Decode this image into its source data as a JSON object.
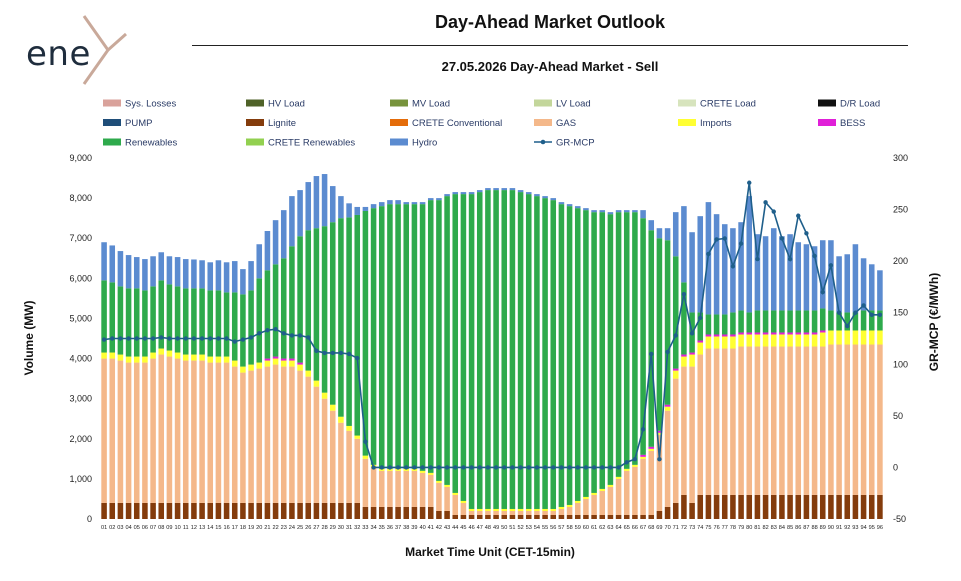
{
  "header": {
    "logo_text": "ene",
    "title": "Day-Ahead Market Outlook",
    "subtitle": "27.05.2026  Day-Ahead Market - Sell"
  },
  "chart_data": {
    "type": "bar",
    "stacked": true,
    "title": "27.05.2026  Day-Ahead Market - Sell",
    "xlabel": "Market Time Unit (CET-15min)",
    "ylabel": "Volume (MW)",
    "y2label": "GR-MCP (€/MWh)",
    "ylim": [
      0,
      9000
    ],
    "y2lim": [
      -50,
      300
    ],
    "yticks": [
      0,
      1000,
      2000,
      3000,
      4000,
      5000,
      6000,
      7000,
      8000,
      9000
    ],
    "y2ticks": [
      -50,
      0,
      50,
      100,
      150,
      200,
      250,
      300
    ],
    "categories": [
      "01",
      "02",
      "03",
      "04",
      "05",
      "06",
      "07",
      "08",
      "09",
      "10",
      "11",
      "12",
      "13",
      "14",
      "15",
      "16",
      "17",
      "18",
      "19",
      "20",
      "21",
      "22",
      "23",
      "24",
      "25",
      "26",
      "27",
      "28",
      "29",
      "30",
      "31",
      "32",
      "33",
      "34",
      "35",
      "36",
      "37",
      "38",
      "39",
      "40",
      "41",
      "42",
      "43",
      "44",
      "45",
      "46",
      "47",
      "48",
      "49",
      "50",
      "51",
      "52",
      "53",
      "54",
      "55",
      "56",
      "57",
      "58",
      "59",
      "60",
      "61",
      "62",
      "63",
      "64",
      "65",
      "66",
      "67",
      "68",
      "69",
      "70",
      "71",
      "72",
      "73",
      "74",
      "75",
      "76",
      "77",
      "78",
      "79",
      "80",
      "81",
      "82",
      "83",
      "84",
      "85",
      "86",
      "87",
      "88",
      "89",
      "90",
      "91",
      "92",
      "93",
      "94",
      "95",
      "96"
    ],
    "legend": {
      "placement": "top",
      "entries": [
        {
          "name": "Sys. Losses",
          "color": "#d9a29b",
          "kind": "bar"
        },
        {
          "name": "HV Load",
          "color": "#4f6228",
          "kind": "bar"
        },
        {
          "name": "MV Load",
          "color": "#77933c",
          "kind": "bar"
        },
        {
          "name": "LV Load",
          "color": "#c3d69b",
          "kind": "bar"
        },
        {
          "name": "CRETE Load",
          "color": "#d7e4bd",
          "kind": "bar"
        },
        {
          "name": "D/R Load",
          "color": "#111111",
          "kind": "bar"
        },
        {
          "name": "PUMP",
          "color": "#1f4e79",
          "kind": "bar"
        },
        {
          "name": "Lignite",
          "color": "#843c0c",
          "kind": "bar"
        },
        {
          "name": "CRETE Conventional",
          "color": "#e46c0a",
          "kind": "bar"
        },
        {
          "name": "GAS",
          "color": "#f4b88a",
          "kind": "bar"
        },
        {
          "name": "Imports",
          "color": "#ffff33",
          "kind": "bar"
        },
        {
          "name": "BESS",
          "color": "#e020d8",
          "kind": "bar"
        },
        {
          "name": "Renewables",
          "color": "#2eaa4c",
          "kind": "bar"
        },
        {
          "name": "CRETE Renewables",
          "color": "#92d050",
          "kind": "bar"
        },
        {
          "name": "Hydro",
          "color": "#5b8bd0",
          "kind": "bar"
        },
        {
          "name": "GR-MCP",
          "color": "#1f5f8b",
          "kind": "line"
        }
      ]
    },
    "series": [
      {
        "name": "Lignite",
        "color": "#843c0c",
        "values": [
          400,
          400,
          400,
          400,
          400,
          400,
          400,
          400,
          400,
          400,
          400,
          400,
          400,
          400,
          400,
          400,
          400,
          400,
          400,
          400,
          400,
          400,
          400,
          400,
          400,
          400,
          400,
          400,
          400,
          400,
          400,
          400,
          300,
          300,
          300,
          300,
          300,
          300,
          300,
          300,
          300,
          200,
          200,
          100,
          100,
          100,
          100,
          100,
          100,
          100,
          100,
          100,
          100,
          100,
          100,
          100,
          100,
          100,
          100,
          100,
          100,
          100,
          100,
          100,
          100,
          100,
          100,
          100,
          200,
          300,
          400,
          600,
          400,
          600,
          600,
          600,
          600,
          600,
          600,
          600,
          600,
          600,
          600,
          600,
          600,
          600,
          600,
          600,
          600,
          600,
          600,
          600,
          600,
          600,
          600,
          600
        ]
      },
      {
        "name": "GAS",
        "color": "#f4b88a",
        "values": [
          3600,
          3600,
          3550,
          3500,
          3500,
          3500,
          3600,
          3700,
          3650,
          3600,
          3550,
          3550,
          3550,
          3500,
          3500,
          3500,
          3400,
          3250,
          3300,
          3350,
          3400,
          3450,
          3400,
          3400,
          3300,
          3150,
          2900,
          2600,
          2300,
          2000,
          1800,
          1600,
          1200,
          1000,
          900,
          900,
          900,
          900,
          900,
          850,
          800,
          700,
          600,
          500,
          300,
          100,
          100,
          100,
          100,
          100,
          100,
          100,
          100,
          100,
          100,
          100,
          150,
          200,
          300,
          400,
          500,
          600,
          700,
          900,
          1100,
          1200,
          1400,
          1600,
          1900,
          2400,
          3100,
          3200,
          3400,
          3500,
          3650,
          3650,
          3650,
          3650,
          3700,
          3700,
          3700,
          3700,
          3700,
          3700,
          3700,
          3700,
          3700,
          3700,
          3700,
          3750,
          3750,
          3750,
          3750,
          3750,
          3750,
          3750
        ]
      },
      {
        "name": "Imports",
        "color": "#ffff33",
        "values": [
          150,
          150,
          150,
          150,
          150,
          150,
          150,
          150,
          150,
          150,
          150,
          150,
          150,
          150,
          150,
          150,
          150,
          150,
          150,
          150,
          150,
          150,
          150,
          150,
          150,
          150,
          150,
          150,
          150,
          150,
          120,
          80,
          80,
          50,
          50,
          50,
          50,
          50,
          50,
          50,
          50,
          50,
          50,
          50,
          50,
          50,
          50,
          50,
          50,
          50,
          50,
          50,
          50,
          50,
          50,
          50,
          50,
          50,
          50,
          50,
          50,
          50,
          50,
          50,
          50,
          50,
          50,
          50,
          50,
          100,
          200,
          250,
          300,
          300,
          300,
          300,
          300,
          300,
          300,
          300,
          300,
          300,
          300,
          300,
          300,
          300,
          300,
          300,
          350,
          350,
          350,
          350,
          350,
          350,
          350,
          350
        ]
      },
      {
        "name": "BESS",
        "color": "#e020d8",
        "values": [
          0,
          0,
          0,
          0,
          0,
          0,
          0,
          0,
          0,
          0,
          0,
          0,
          0,
          0,
          0,
          0,
          0,
          0,
          0,
          0,
          50,
          50,
          50,
          50,
          50,
          0,
          0,
          0,
          0,
          0,
          0,
          0,
          0,
          0,
          0,
          0,
          0,
          0,
          0,
          0,
          0,
          0,
          0,
          0,
          0,
          0,
          0,
          0,
          0,
          0,
          0,
          0,
          0,
          0,
          0,
          0,
          0,
          0,
          0,
          0,
          0,
          0,
          0,
          0,
          0,
          0,
          50,
          50,
          50,
          50,
          50,
          50,
          50,
          50,
          50,
          50,
          50,
          50,
          50,
          50,
          50,
          50,
          50,
          50,
          50,
          50,
          50,
          50,
          50,
          0,
          0,
          0,
          0,
          0,
          0,
          0
        ]
      },
      {
        "name": "Renewables",
        "color": "#2eaa4c",
        "values": [
          1800,
          1750,
          1700,
          1700,
          1700,
          1650,
          1650,
          1700,
          1650,
          1650,
          1650,
          1650,
          1650,
          1650,
          1650,
          1600,
          1700,
          1800,
          1850,
          2100,
          2200,
          2300,
          2500,
          2800,
          3150,
          3500,
          3800,
          4150,
          4550,
          4950,
          5200,
          5500,
          6100,
          6400,
          6550,
          6600,
          6600,
          6600,
          6600,
          6650,
          6800,
          7000,
          7200,
          7450,
          7650,
          7850,
          7900,
          7950,
          7950,
          7950,
          7950,
          7900,
          7850,
          7800,
          7750,
          7700,
          7550,
          7450,
          7300,
          7150,
          7000,
          6900,
          6750,
          6600,
          6400,
          6300,
          5900,
          5400,
          4800,
          4100,
          2800,
          1800,
          1000,
          700,
          500,
          500,
          500,
          550,
          550,
          500,
          550,
          550,
          550,
          550,
          550,
          550,
          550,
          550,
          550,
          500,
          450,
          450,
          450,
          500,
          500,
          500
        ]
      },
      {
        "name": "Hydro",
        "color": "#5b8bd0",
        "values": [
          950,
          920,
          880,
          830,
          780,
          780,
          750,
          700,
          700,
          730,
          730,
          720,
          700,
          700,
          750,
          750,
          780,
          630,
          730,
          850,
          980,
          1100,
          1200,
          1250,
          1150,
          1200,
          1300,
          1300,
          900,
          550,
          350,
          200,
          100,
          100,
          100,
          100,
          100,
          50,
          50,
          50,
          50,
          50,
          50,
          50,
          50,
          50,
          50,
          50,
          50,
          50,
          50,
          50,
          50,
          50,
          50,
          50,
          50,
          50,
          50,
          50,
          50,
          50,
          50,
          50,
          50,
          50,
          200,
          250,
          250,
          300,
          1100,
          1900,
          2000,
          2400,
          2800,
          2500,
          2250,
          2100,
          2200,
          2900,
          1900,
          1850,
          2050,
          1850,
          1900,
          1700,
          1650,
          1600,
          1700,
          1750,
          1400,
          1450,
          1700,
          1300,
          1150,
          1000
        ]
      }
    ],
    "line": {
      "name": "GR-MCP",
      "color": "#1f5f8b",
      "axis": "y2",
      "values": [
        124,
        125,
        125,
        125,
        125,
        125,
        125,
        126,
        125,
        125,
        125,
        125,
        125,
        125,
        125,
        125,
        122,
        124,
        126,
        130,
        133,
        134,
        130,
        128,
        128,
        126,
        113,
        111,
        111,
        111,
        110,
        106,
        25,
        0,
        0,
        0,
        0,
        0,
        0,
        0,
        0,
        0,
        0,
        0,
        0,
        0,
        0,
        0,
        0,
        0,
        0,
        0,
        0,
        0,
        0,
        0,
        0,
        0,
        0,
        0,
        0,
        0,
        0,
        0,
        5,
        8,
        37,
        110,
        8,
        112,
        128,
        168,
        130,
        145,
        207,
        221,
        222,
        195,
        217,
        276,
        202,
        257,
        248,
        222,
        202,
        244,
        227,
        205,
        170,
        196,
        150,
        137,
        150,
        157,
        148,
        148
      ]
    }
  }
}
